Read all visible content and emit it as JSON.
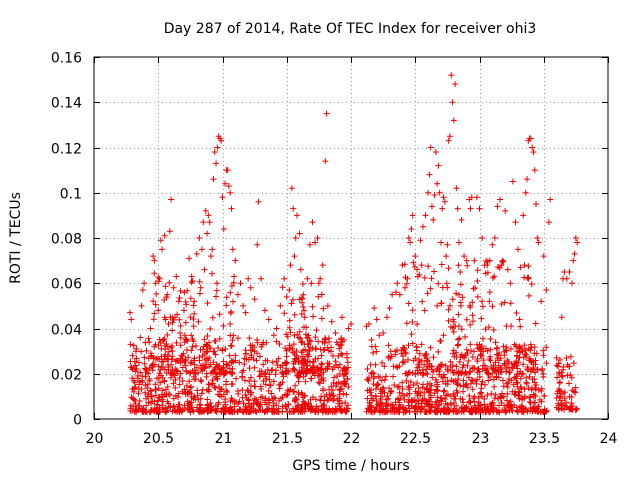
{
  "chart_data": {
    "type": "scatter",
    "title": "Day 287 of 2014, Rate Of TEC Index for receiver ohi3",
    "xlabel": "GPS time / hours",
    "ylabel": "ROTI / TECUs",
    "xlim": [
      20,
      24
    ],
    "ylim": [
      0,
      0.16
    ],
    "x_ticks": [
      20,
      20.5,
      21,
      21.5,
      22,
      22.5,
      23,
      23.5,
      24
    ],
    "x_tick_labels": [
      "20",
      "20.5",
      "21",
      "21.5",
      "22",
      "22.5",
      "23",
      "23.5",
      "24"
    ],
    "y_ticks": [
      0,
      0.02,
      0.04,
      0.06,
      0.08,
      0.1,
      0.12,
      0.14,
      0.16
    ],
    "y_tick_labels": [
      "0",
      "0.02",
      "0.04",
      "0.06",
      "0.08",
      "0.1",
      "0.12",
      "0.14",
      "0.16"
    ],
    "grid": true,
    "marker": "+",
    "color": "#ee0000",
    "series": [
      {
        "name": "ROTI",
        "points": [
          [
            20.28,
            0.047
          ],
          [
            20.29,
            0.044
          ],
          [
            20.3,
            0.028
          ],
          [
            20.3,
            0.022
          ],
          [
            20.31,
            0.012
          ],
          [
            20.32,
            0.008
          ],
          [
            20.33,
            0.031
          ],
          [
            20.34,
            0.018
          ],
          [
            20.35,
            0.025
          ],
          [
            20.36,
            0.036
          ],
          [
            20.37,
            0.05
          ],
          [
            20.38,
            0.057
          ],
          [
            20.39,
            0.06
          ],
          [
            20.4,
            0.015
          ],
          [
            20.41,
            0.022
          ],
          [
            20.42,
            0.01
          ],
          [
            20.43,
            0.034
          ],
          [
            20.44,
            0.04
          ],
          [
            20.45,
            0.028
          ],
          [
            20.46,
            0.072
          ],
          [
            20.47,
            0.07
          ],
          [
            20.48,
            0.06
          ],
          [
            20.49,
            0.018
          ],
          [
            20.5,
            0.048
          ],
          [
            20.51,
            0.062
          ],
          [
            20.52,
            0.079
          ],
          [
            20.53,
            0.075
          ],
          [
            20.54,
            0.035
          ],
          [
            20.55,
            0.081
          ],
          [
            20.56,
            0.013
          ],
          [
            20.57,
            0.055
          ],
          [
            20.58,
            0.042
          ],
          [
            20.59,
            0.083
          ],
          [
            20.6,
            0.097
          ],
          [
            20.61,
            0.03
          ],
          [
            20.62,
            0.058
          ],
          [
            20.63,
            0.045
          ],
          [
            20.64,
            0.063
          ],
          [
            20.65,
            0.021
          ],
          [
            20.66,
            0.052
          ],
          [
            20.67,
            0.038
          ],
          [
            20.68,
            0.028
          ],
          [
            20.7,
            0.048
          ],
          [
            20.72,
            0.035
          ],
          [
            20.74,
            0.071
          ],
          [
            20.75,
            0.045
          ],
          [
            20.76,
            0.063
          ],
          [
            20.78,
            0.052
          ],
          [
            20.8,
            0.073
          ],
          [
            20.82,
            0.08
          ],
          [
            20.83,
            0.058
          ],
          [
            20.84,
            0.075
          ],
          [
            20.85,
            0.087
          ],
          [
            20.86,
            0.066
          ],
          [
            20.87,
            0.092
          ],
          [
            20.88,
            0.082
          ],
          [
            20.89,
            0.09
          ],
          [
            20.9,
            0.087
          ],
          [
            20.91,
            0.072
          ],
          [
            20.92,
            0.075
          ],
          [
            20.93,
            0.106
          ],
          [
            20.94,
            0.118
          ],
          [
            20.95,
            0.113
          ],
          [
            20.96,
            0.12
          ],
          [
            20.97,
            0.125
          ],
          [
            20.98,
            0.124
          ],
          [
            20.99,
            0.123
          ],
          [
            21.0,
            0.098
          ],
          [
            21.01,
            0.084
          ],
          [
            21.02,
            0.104
          ],
          [
            21.03,
            0.11
          ],
          [
            21.04,
            0.11
          ],
          [
            21.05,
            0.103
          ],
          [
            21.06,
            0.1
          ],
          [
            21.07,
            0.093
          ],
          [
            21.08,
            0.075
          ],
          [
            21.09,
            0.063
          ],
          [
            21.1,
            0.07
          ],
          [
            21.12,
            0.055
          ],
          [
            21.14,
            0.06
          ],
          [
            21.16,
            0.05
          ],
          [
            21.18,
            0.047
          ],
          [
            21.2,
            0.062
          ],
          [
            21.22,
            0.058
          ],
          [
            21.25,
            0.053
          ],
          [
            21.27,
            0.077
          ],
          [
            21.28,
            0.096
          ],
          [
            21.3,
            0.062
          ],
          [
            21.33,
            0.048
          ],
          [
            21.36,
            0.044
          ],
          [
            21.4,
            0.037
          ],
          [
            21.42,
            0.04
          ],
          [
            21.45,
            0.05
          ],
          [
            21.48,
            0.062
          ],
          [
            21.5,
            0.054
          ],
          [
            21.52,
            0.057
          ],
          [
            21.53,
            0.068
          ],
          [
            21.54,
            0.102
          ],
          [
            21.55,
            0.093
          ],
          [
            21.56,
            0.072
          ],
          [
            21.57,
            0.08
          ],
          [
            21.58,
            0.09
          ],
          [
            21.6,
            0.082
          ],
          [
            21.61,
            0.066
          ],
          [
            21.62,
            0.053
          ],
          [
            21.64,
            0.045
          ],
          [
            21.66,
            0.062
          ],
          [
            21.68,
            0.077
          ],
          [
            21.7,
            0.087
          ],
          [
            21.72,
            0.078
          ],
          [
            21.74,
            0.08
          ],
          [
            21.75,
            0.06
          ],
          [
            21.76,
            0.062
          ],
          [
            21.78,
            0.068
          ],
          [
            21.8,
            0.114
          ],
          [
            21.81,
            0.135
          ],
          [
            21.82,
            0.05
          ],
          [
            21.85,
            0.043
          ],
          [
            21.88,
            0.038
          ],
          [
            21.9,
            0.033
          ],
          [
            21.93,
            0.045
          ],
          [
            21.96,
            0.02
          ],
          [
            21.98,
            0.04
          ],
          [
            22.0,
            0.042
          ],
          [
            22.12,
            0.041
          ],
          [
            22.14,
            0.042
          ],
          [
            22.16,
            0.035
          ],
          [
            22.18,
            0.049
          ],
          [
            22.2,
            0.044
          ],
          [
            22.22,
            0.037
          ],
          [
            22.25,
            0.038
          ],
          [
            22.28,
            0.045
          ],
          [
            22.3,
            0.049
          ],
          [
            22.32,
            0.055
          ],
          [
            22.35,
            0.056
          ],
          [
            22.36,
            0.06
          ],
          [
            22.38,
            0.055
          ],
          [
            22.4,
            0.068
          ],
          [
            22.42,
            0.058
          ],
          [
            22.44,
            0.062
          ],
          [
            22.45,
            0.08
          ],
          [
            22.46,
            0.078
          ],
          [
            22.47,
            0.084
          ],
          [
            22.48,
            0.09
          ],
          [
            22.5,
            0.072
          ],
          [
            22.52,
            0.063
          ],
          [
            22.54,
            0.079
          ],
          [
            22.55,
            0.068
          ],
          [
            22.56,
            0.085
          ],
          [
            22.58,
            0.09
          ],
          [
            22.6,
            0.1
          ],
          [
            22.61,
            0.108
          ],
          [
            22.62,
            0.12
          ],
          [
            22.63,
            0.094
          ],
          [
            22.64,
            0.088
          ],
          [
            22.65,
            0.099
          ],
          [
            22.66,
            0.118
          ],
          [
            22.67,
            0.104
          ],
          [
            22.68,
            0.112
          ],
          [
            22.69,
            0.1
          ],
          [
            22.7,
            0.078
          ],
          [
            22.71,
            0.093
          ],
          [
            22.72,
            0.098
          ],
          [
            22.73,
            0.096
          ],
          [
            22.74,
            0.072
          ],
          [
            22.75,
            0.077
          ],
          [
            22.76,
            0.123
          ],
          [
            22.77,
            0.125
          ],
          [
            22.78,
            0.152
          ],
          [
            22.79,
            0.14
          ],
          [
            22.8,
            0.132
          ],
          [
            22.81,
            0.148
          ],
          [
            22.82,
            0.102
          ],
          [
            22.83,
            0.093
          ],
          [
            22.84,
            0.078
          ],
          [
            22.85,
            0.065
          ],
          [
            22.86,
            0.088
          ],
          [
            22.88,
            0.072
          ],
          [
            22.9,
            0.07
          ],
          [
            22.92,
            0.097
          ],
          [
            22.93,
            0.093
          ],
          [
            22.94,
            0.098
          ],
          [
            22.96,
            0.07
          ],
          [
            22.98,
            0.098
          ],
          [
            23.0,
            0.093
          ],
          [
            23.02,
            0.08
          ],
          [
            23.04,
            0.068
          ],
          [
            23.06,
            0.068
          ],
          [
            23.08,
            0.07
          ],
          [
            23.1,
            0.077
          ],
          [
            23.12,
            0.08
          ],
          [
            23.14,
            0.094
          ],
          [
            23.16,
            0.097
          ],
          [
            23.18,
            0.07
          ],
          [
            23.2,
            0.092
          ],
          [
            23.22,
            0.066
          ],
          [
            23.24,
            0.06
          ],
          [
            23.26,
            0.105
          ],
          [
            23.28,
            0.087
          ],
          [
            23.3,
            0.075
          ],
          [
            23.32,
            0.067
          ],
          [
            23.34,
            0.09
          ],
          [
            23.35,
            0.068
          ],
          [
            23.36,
            0.1
          ],
          [
            23.37,
            0.106
          ],
          [
            23.38,
            0.123
          ],
          [
            23.39,
            0.124
          ],
          [
            23.4,
            0.124
          ],
          [
            23.41,
            0.12
          ],
          [
            23.42,
            0.118
          ],
          [
            23.43,
            0.11
          ],
          [
            23.44,
            0.095
          ],
          [
            23.45,
            0.08
          ],
          [
            23.46,
            0.078
          ],
          [
            23.48,
            0.052
          ],
          [
            23.5,
            0.072
          ],
          [
            23.52,
            0.057
          ],
          [
            23.54,
            0.087
          ],
          [
            23.55,
            0.097
          ],
          [
            23.6,
            0.027
          ],
          [
            23.62,
            0.02
          ],
          [
            23.64,
            0.045
          ],
          [
            23.65,
            0.062
          ],
          [
            23.66,
            0.065
          ],
          [
            23.68,
            0.062
          ],
          [
            23.7,
            0.065
          ],
          [
            23.72,
            0.06
          ],
          [
            23.73,
            0.07
          ],
          [
            23.74,
            0.073
          ],
          [
            23.75,
            0.08
          ],
          [
            23.76,
            0.078
          ]
        ],
        "bands": [
          {
            "x": [
              20.28,
              21.98
            ],
            "y": [
              0.003,
              0.036
            ],
            "count": 900
          },
          {
            "x": [
              22.12,
              23.53
            ],
            "y": [
              0.003,
              0.033
            ],
            "count": 750
          },
          {
            "x": [
              23.6,
              23.76
            ],
            "y": [
              0.004,
              0.028
            ],
            "count": 70
          },
          {
            "x": [
              20.45,
              21.1
            ],
            "y": [
              0.02,
              0.065
            ],
            "count": 160
          },
          {
            "x": [
              21.45,
              21.8
            ],
            "y": [
              0.02,
              0.06
            ],
            "count": 100
          },
          {
            "x": [
              22.4,
              23.45
            ],
            "y": [
              0.02,
              0.07
            ],
            "count": 220
          }
        ]
      }
    ]
  }
}
